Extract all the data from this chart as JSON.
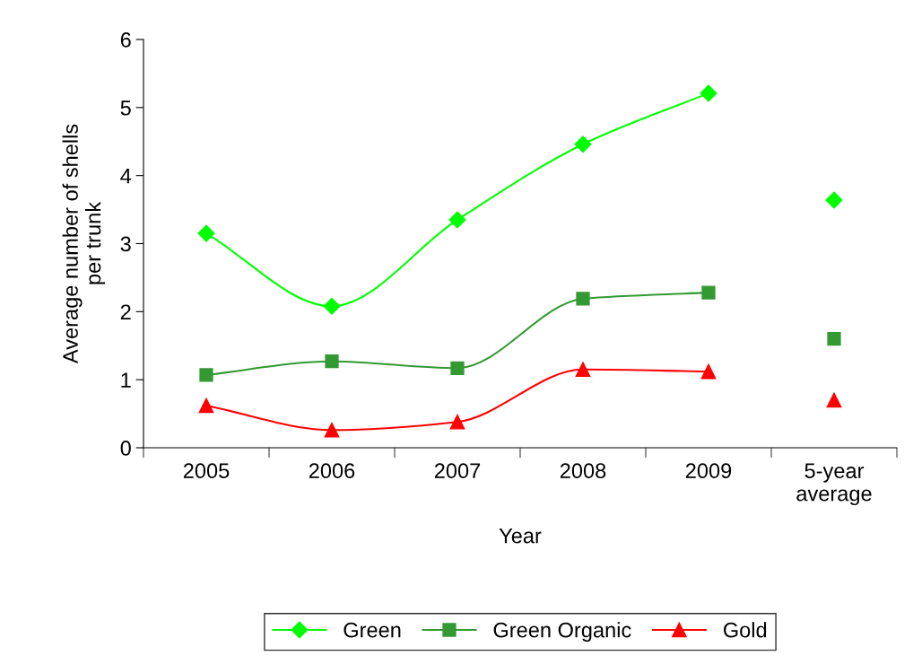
{
  "chart_data": {
    "type": "line",
    "xlabel": "Year",
    "ylabel": "Average number of shells\nper trunk",
    "categories": [
      "2005",
      "2006",
      "2007",
      "2008",
      "2009",
      "5-year\naverage"
    ],
    "ylim": [
      0,
      6
    ],
    "yticks": [
      0,
      1,
      2,
      3,
      4,
      5,
      6
    ],
    "grid": false,
    "legend": "bottom",
    "series": [
      {
        "name": "Green",
        "color": "#00ff00",
        "marker": "diamond",
        "values": [
          3.15,
          2.08,
          3.35,
          4.46,
          5.21,
          null
        ]
      },
      {
        "name": "Green Organic",
        "color": "#339933",
        "marker": "square",
        "values": [
          1.07,
          1.27,
          1.17,
          2.19,
          2.28,
          null
        ]
      },
      {
        "name": "Gold",
        "color": "#ff0000",
        "marker": "triangle",
        "values": [
          0.62,
          0.26,
          0.38,
          1.15,
          1.12,
          null
        ]
      },
      {
        "type": "scatter",
        "color": "#00ff00",
        "marker": "diamond",
        "values": [
          null,
          null,
          null,
          null,
          null,
          3.64
        ]
      },
      {
        "type": "scatter",
        "color": "#339933",
        "marker": "square",
        "values": [
          null,
          null,
          null,
          null,
          null,
          1.6
        ]
      },
      {
        "type": "scatter",
        "color": "#ff0000",
        "marker": "triangle",
        "values": [
          null,
          null,
          null,
          null,
          null,
          0.7
        ]
      }
    ]
  }
}
